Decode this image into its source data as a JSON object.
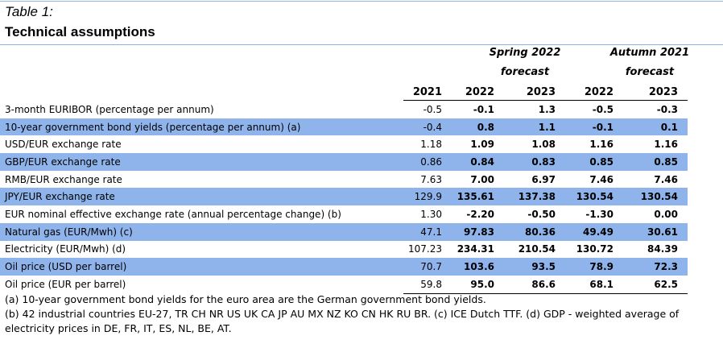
{
  "table_label": "Table 1:",
  "table_title": "Technical assumptions",
  "groups": {
    "spring_line1": "Spring 2022",
    "spring_line2": "forecast",
    "autumn_line1": "Autumn 2021",
    "autumn_line2": "forecast"
  },
  "columns": [
    "2021",
    "2022",
    "2023",
    "2022",
    "2023"
  ],
  "rows": [
    {
      "label": "3-month EURIBOR (percentage per annum)",
      "values": [
        "-0.5",
        "-0.1",
        "1.3",
        "-0.5",
        "-0.3"
      ]
    },
    {
      "label": "10-year government bond yields (percentage per annum) (a)",
      "values": [
        "-0.4",
        "0.8",
        "1.1",
        "-0.1",
        "0.1"
      ]
    },
    {
      "label": "USD/EUR exchange rate",
      "values": [
        "1.18",
        "1.09",
        "1.08",
        "1.16",
        "1.16"
      ]
    },
    {
      "label": "GBP/EUR exchange rate",
      "values": [
        "0.86",
        "0.84",
        "0.83",
        "0.85",
        "0.85"
      ]
    },
    {
      "label": "RMB/EUR exchange rate",
      "values": [
        "7.63",
        "7.00",
        "6.97",
        "7.46",
        "7.46"
      ]
    },
    {
      "label": "JPY/EUR exchange rate",
      "values": [
        "129.9",
        "135.61",
        "137.38",
        "130.54",
        "130.54"
      ]
    },
    {
      "label": "EUR nominal effective exchange rate (annual percentage change) (b)",
      "values": [
        "1.30",
        "-2.20",
        "-0.50",
        "-1.30",
        "0.00"
      ]
    },
    {
      "label": "Natural gas (EUR/Mwh) (c)",
      "values": [
        "47.1",
        "97.83",
        "80.36",
        "49.49",
        "30.61"
      ]
    },
    {
      "label": "Electricity (EUR/Mwh) (d)",
      "values": [
        "107.23",
        "234.31",
        "210.54",
        "130.72",
        "84.39"
      ]
    },
    {
      "label": "Oil price (USD per barrel)",
      "values": [
        "70.7",
        "103.6",
        "93.5",
        "78.9",
        "72.3"
      ]
    },
    {
      "label": "Oil price (EUR per barrel)",
      "values": [
        "59.8",
        "95.0",
        "86.6",
        "68.1",
        "62.5"
      ]
    }
  ],
  "notes": [
    "(a) 10-year government bond yields for the euro area are the German government bond yields.",
    "(b) 42 industrial countries EU-27, TR CH NR US UK CA JP AU MX NZ KO CN HK RU BR. (c) ICE Dutch TTF. (d) GDP - weighted average of",
    "electricity prices in DE, FR, IT, ES, NL, BE, AT."
  ],
  "colors": {
    "row_shade": "#8fb4ec",
    "rule": "#8cb4e2"
  }
}
